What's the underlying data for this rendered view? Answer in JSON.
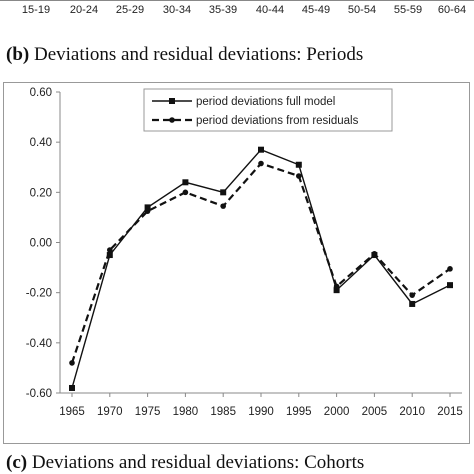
{
  "top_axis": {
    "ticks": [
      "15-19",
      "20-24",
      "25-29",
      "30-34",
      "35-39",
      "40-44",
      "45-49",
      "50-54",
      "55-59",
      "60-64"
    ]
  },
  "caption_b": {
    "label": "(b)",
    "text": " Deviations and residual deviations: Periods"
  },
  "caption_c": {
    "label": "(c)",
    "text": " Deviations and residual deviations: Cohorts"
  },
  "chart_data": {
    "type": "line",
    "title": "",
    "xlabel": "",
    "ylabel": "",
    "x": [
      1965,
      1970,
      1975,
      1980,
      1985,
      1990,
      1995,
      2000,
      2005,
      2010,
      2015
    ],
    "x_tick_labels": [
      "1965",
      "1970",
      "1975",
      "1980",
      "1985",
      "1990",
      "1995",
      "2000",
      "2005",
      "2010",
      "2015"
    ],
    "y_tick_labels": [
      "0.60",
      "0.40",
      "0.20",
      "0.00",
      "-0.20",
      "-0.40",
      "-0.60"
    ],
    "ylim": [
      -0.6,
      0.6
    ],
    "grid": false,
    "legend_position": "top-right",
    "series": [
      {
        "name": "period deviations full model",
        "style": "solid",
        "marker": "square",
        "color": "#111111",
        "values": [
          -0.58,
          -0.05,
          0.14,
          0.24,
          0.2,
          0.37,
          0.31,
          -0.19,
          -0.05,
          -0.245,
          -0.17
        ]
      },
      {
        "name": "period deviations from residuals",
        "style": "dashed",
        "marker": "circle",
        "color": "#111111",
        "values": [
          -0.48,
          -0.03,
          0.125,
          0.2,
          0.145,
          0.315,
          0.265,
          -0.175,
          -0.045,
          -0.21,
          -0.105
        ]
      }
    ]
  }
}
